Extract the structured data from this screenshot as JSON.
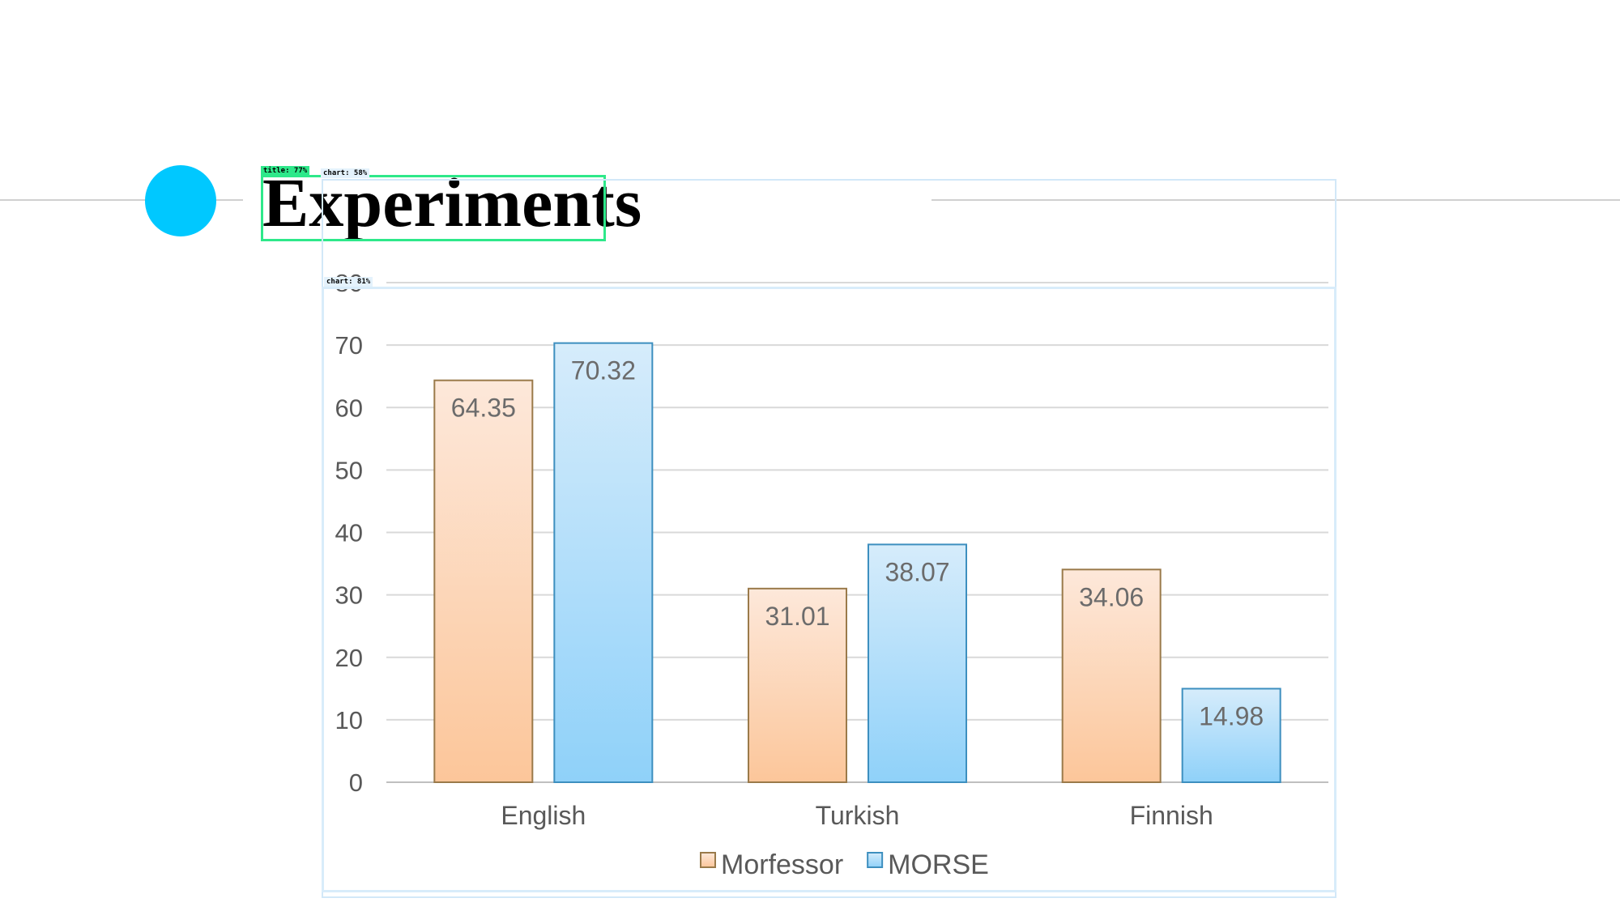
{
  "slide": {
    "title": "Experiments",
    "colors": {
      "accent_dot": "#00c8ff",
      "rule": "#d0d0d0"
    }
  },
  "detections": {
    "title_tag": "title: 77%",
    "chart_tag_1": "chart: 58%",
    "chart_tag_2": "chart: 81%"
  },
  "chart_data": {
    "type": "bar",
    "title": "",
    "xlabel": "",
    "ylabel": "",
    "categories": [
      "English",
      "Turkish",
      "Finnish"
    ],
    "series": [
      {
        "name": "Morfessor",
        "values": [
          64.35,
          31.01,
          34.06
        ],
        "fill_top": "#fde8da",
        "fill_bottom": "#fcc69a",
        "stroke": "#9a7a4a"
      },
      {
        "name": "MORSE",
        "values": [
          70.32,
          38.07,
          14.98
        ],
        "fill_top": "#d6ecfb",
        "fill_bottom": "#8fd1f9",
        "stroke": "#3d8fbf"
      }
    ],
    "value_labels": [
      [
        "64.35",
        "31.01",
        "34.06"
      ],
      [
        "70.32",
        "38.07",
        "14.98"
      ]
    ],
    "ylim": [
      0,
      80
    ],
    "yticks": [
      "0",
      "10",
      "20",
      "30",
      "40",
      "50",
      "60",
      "70",
      "80"
    ],
    "grid": true,
    "legend": "bottom"
  }
}
